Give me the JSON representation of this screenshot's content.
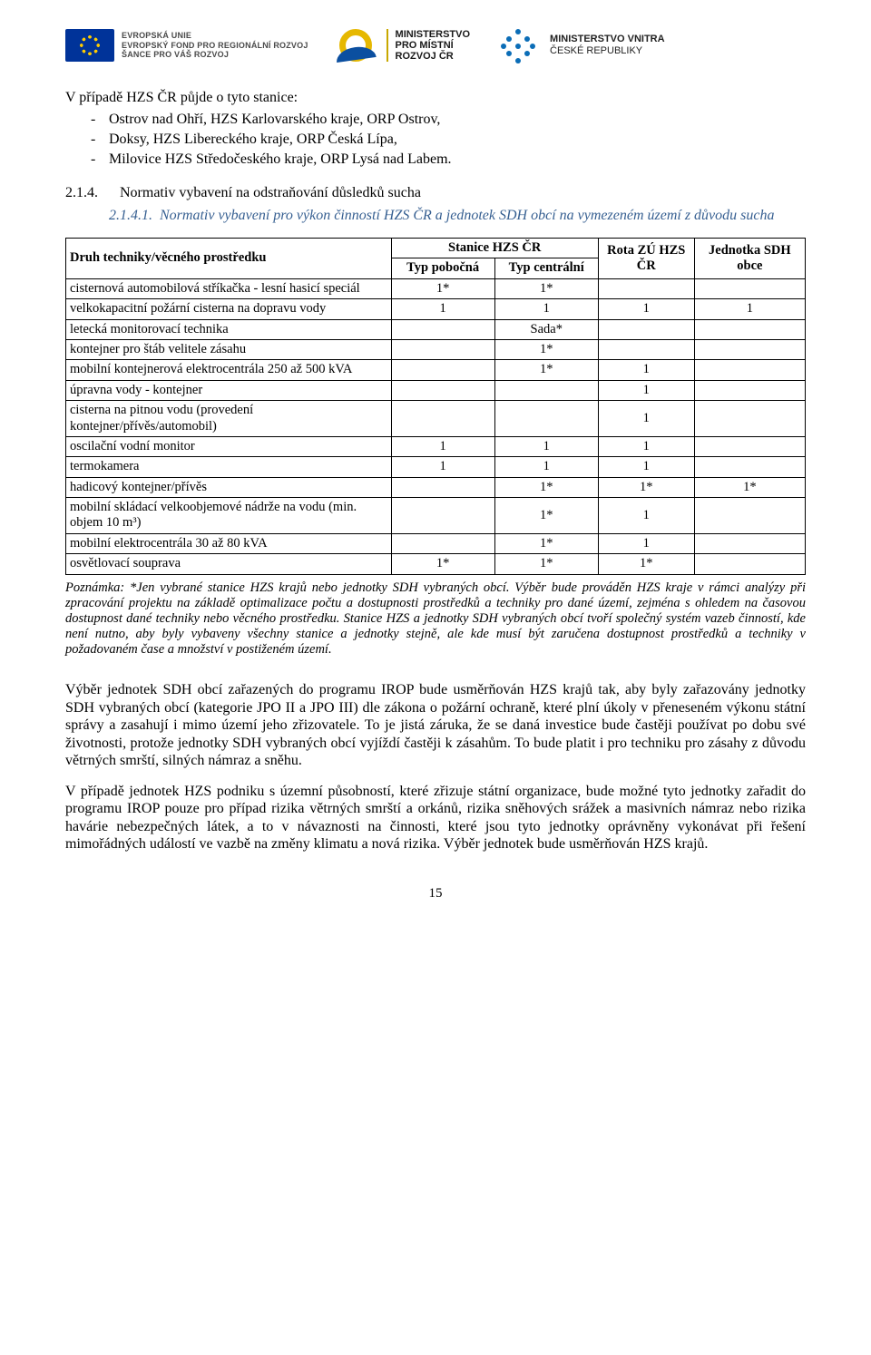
{
  "header": {
    "eu": {
      "line1": "EVROPSKÁ UNIE",
      "line2": "EVROPSKÝ FOND PRO REGIONÁLNÍ ROZVOJ",
      "line3": "ŠANCE PRO VÁŠ ROZVOJ"
    },
    "mmr": {
      "line1": "MINISTERSTVO",
      "line2": "PRO MÍSTNÍ",
      "line3": "ROZVOJ ČR"
    },
    "mvcr": {
      "line1": "MINISTERSTVO VNITRA",
      "line2": "ČESKÉ REPUBLIKY"
    }
  },
  "intro_line": "V případě HZS ČR půjde o tyto stanice:",
  "intro_items": [
    "Ostrov nad Ohří, HZS Karlovarského kraje, ORP Ostrov,",
    "Doksy, HZS Libereckého kraje, ORP Česká Lípa,",
    "Milovice HZS Středočeského kraje, ORP Lysá nad Labem."
  ],
  "sec214_num": "2.1.4.",
  "sec214_title": "Normativ vybavení na odstraňování důsledků sucha",
  "sec2141_num": "2.1.4.1.",
  "sec2141_title": "Normativ vybavení pro výkon činností HZS ČR a jednotek SDH obcí na vymezeném území z důvodu sucha",
  "table": {
    "col_label": "Druh techniky/věcného prostředku",
    "group_header": "Stanice HZS ČR",
    "col_pobocna": "Typ pobočná",
    "col_centralni": "Typ centrální",
    "col_rota": "Rota ZÚ HZS ČR",
    "col_sdh": "Jednotka SDH obce",
    "rows": [
      {
        "label": "cisternová automobilová stříkačka - lesní hasicí speciál",
        "c1": "1*",
        "c2": "1*",
        "c3": "",
        "c4": ""
      },
      {
        "label": "velkokapacitní požární cisterna na dopravu vody",
        "c1": "1",
        "c2": "1",
        "c3": "1",
        "c4": "1"
      },
      {
        "label": "letecká monitorovací technika",
        "c1": "",
        "c2": "Sada*",
        "c3": "",
        "c4": ""
      },
      {
        "label": "kontejner pro štáb velitele zásahu",
        "c1": "",
        "c2": "1*",
        "c3": "",
        "c4": ""
      },
      {
        "label": "mobilní kontejnerová elektrocentrála 250 až 500 kVA",
        "c1": "",
        "c2": "1*",
        "c3": "1",
        "c4": ""
      },
      {
        "label": "úpravna vody - kontejner",
        "c1": "",
        "c2": "",
        "c3": "1",
        "c4": ""
      },
      {
        "label": "cisterna na pitnou vodu (provedení kontejner/přívěs/automobil)",
        "c1": "",
        "c2": "",
        "c3": "1",
        "c4": ""
      },
      {
        "label": "oscilační vodní monitor",
        "c1": "1",
        "c2": "1",
        "c3": "1",
        "c4": ""
      },
      {
        "label": "termokamera",
        "c1": "1",
        "c2": "1",
        "c3": "1",
        "c4": ""
      },
      {
        "label": "hadicový kontejner/přívěs",
        "c1": "",
        "c2": "1*",
        "c3": "1*",
        "c4": "1*"
      },
      {
        "label": "mobilní skládací velkoobjemové nádrže na vodu (min. objem 10 m³)",
        "c1": "",
        "c2": "1*",
        "c3": "1",
        "c4": ""
      },
      {
        "label": "mobilní elektrocentrála 30 až 80 kVA",
        "c1": "",
        "c2": "1*",
        "c3": "1",
        "c4": ""
      },
      {
        "label": "osvětlovací souprava",
        "c1": "1*",
        "c2": "1*",
        "c3": "1*",
        "c4": ""
      }
    ]
  },
  "note": "Poznámka: *Jen vybrané stanice HZS krajů nebo jednotky SDH vybraných obcí. Výběr bude prováděn HZS kraje v rámci analýzy při zpracování projektu na základě optimalizace počtu a dostupnosti prostředků a techniky pro dané území, zejména s ohledem na časovou dostupnost dané techniky nebo věcného prostředku. Stanice HZS a jednotky SDH vybraných obcí tvoří společný systém vazeb činností, kde není nutno, aby byly vybaveny všechny stanice a jednotky stejně, ale kde musí být zaručena dostupnost prostředků a techniky v požadovaném čase a množství v postiženém území.",
  "para1": "Výběr jednotek SDH obcí zařazených do programu IROP bude usměrňován HZS krajů tak, aby byly zařazovány jednotky SDH vybraných obcí (kategorie JPO II a JPO III) dle zákona o požární ochraně, které plní úkoly v přeneseném výkonu státní správy a zasahují i mimo území jeho zřizovatele. To je jistá záruka, že se daná investice bude častěji používat po dobu své životnosti, protože jednotky SDH vybraných obcí vyjíždí častěji k zásahům. To bude platit i pro techniku pro zásahy z důvodu větrných smrští, silných námraz a sněhu.",
  "para2": "V případě jednotek HZS podniku s územní působností, které zřizuje státní organizace, bude možné tyto jednotky zařadit do programu IROP pouze pro případ rizika větrných smrští a orkánů, rizika sněhových srážek a masivních námraz nebo rizika havárie nebezpečných látek, a to v návaznosti na činnosti, které jsou tyto jednotky oprávněny vykonávat při řešení mimořádných událostí ve vazbě na změny klimatu a nová rizika. Výběr jednotek bude usměrňován HZS krajů.",
  "page_number": "15"
}
